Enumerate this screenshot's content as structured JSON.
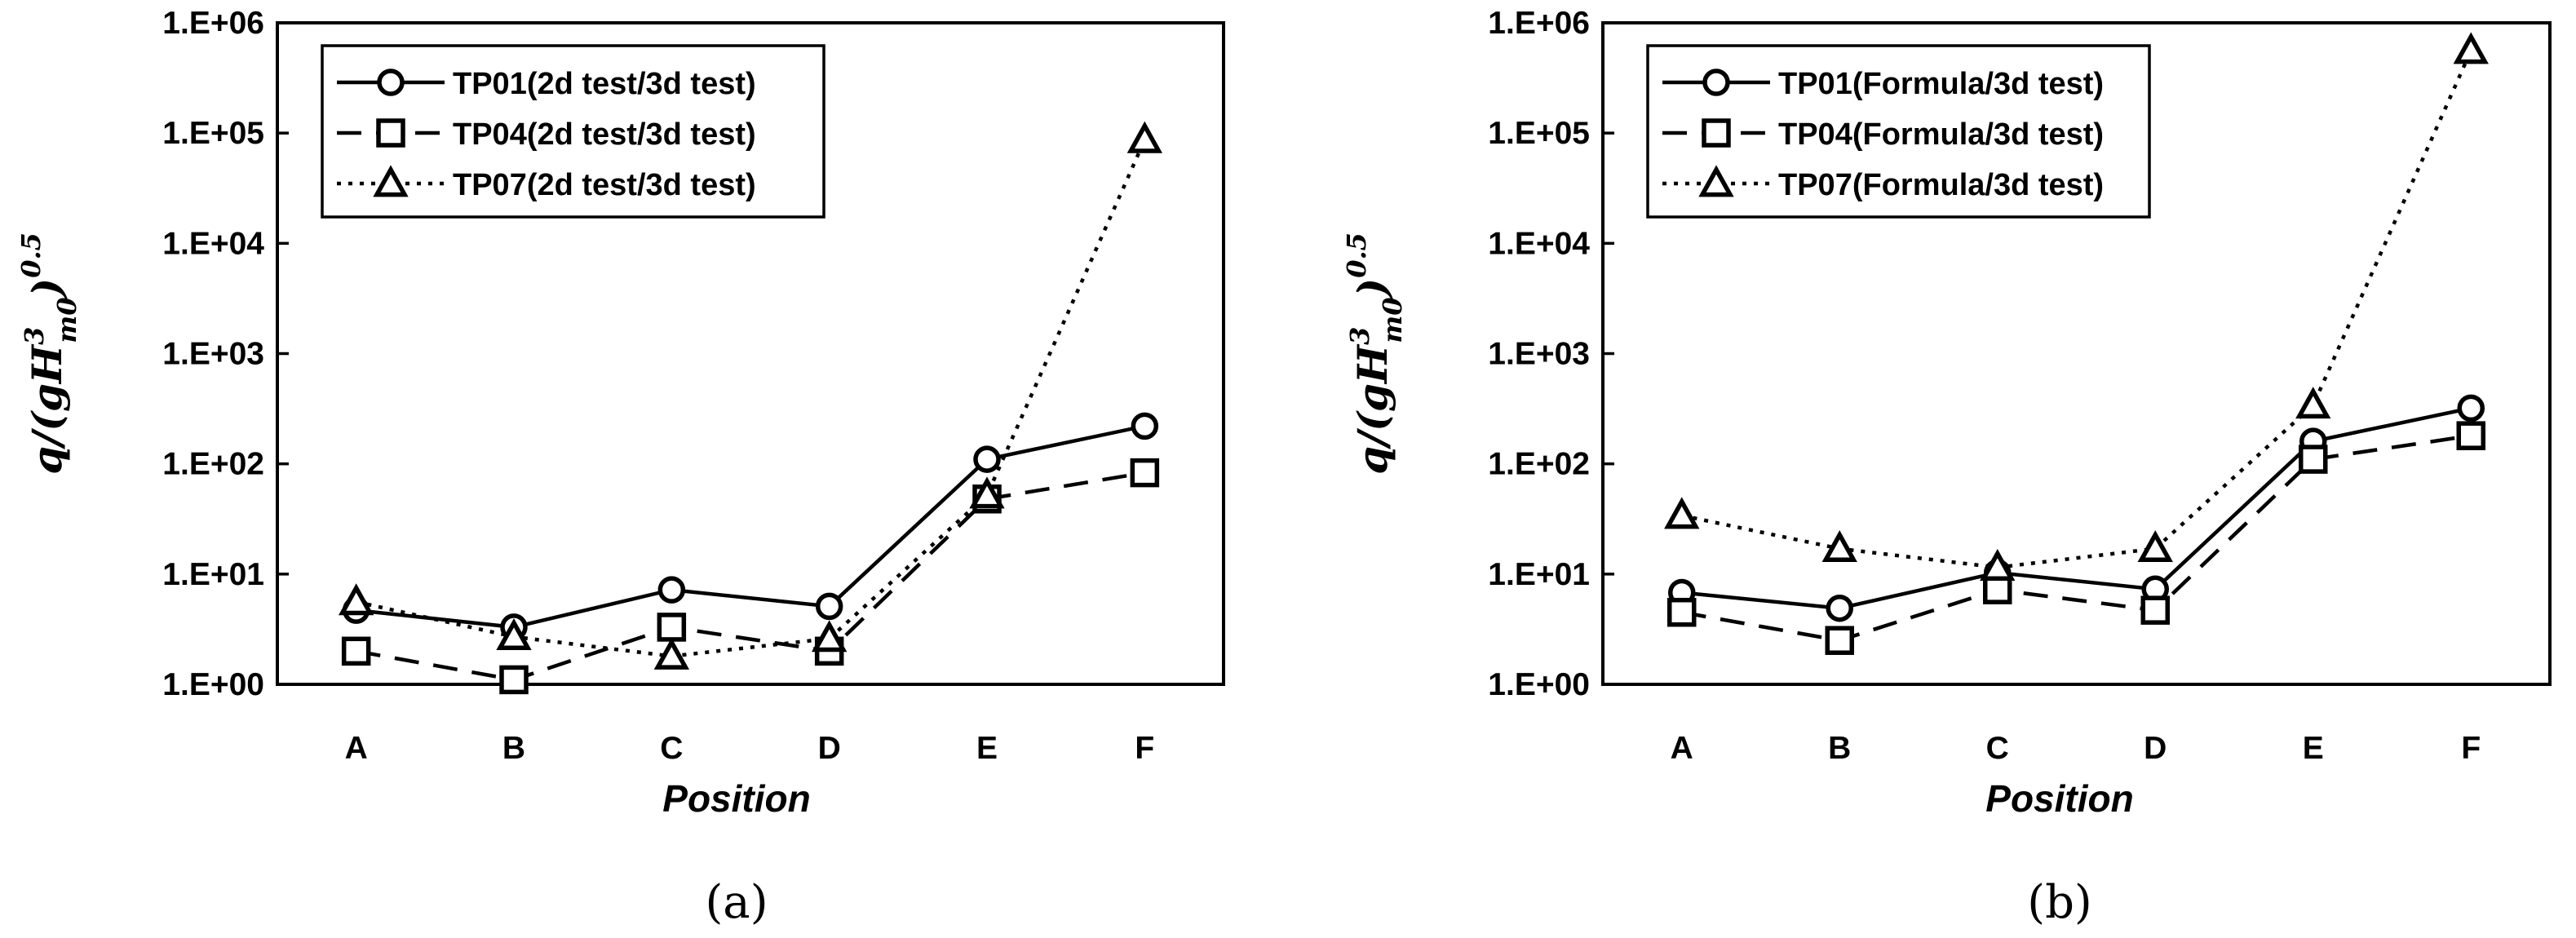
{
  "ylabel": {
    "main": "q/(gH",
    "sup": "3",
    "sub": "m0",
    "close": ")",
    "exp": "0.5"
  },
  "chart_data": [
    {
      "type": "line",
      "panel_label": "(a)",
      "xlabel": "Position",
      "categories": [
        "A",
        "B",
        "C",
        "D",
        "E",
        "F"
      ],
      "y_scale": "log",
      "ylim": [
        1,
        1000000
      ],
      "yticks": [
        "1.E+00",
        "1.E+01",
        "1.E+02",
        "1.E+03",
        "1.E+04",
        "1.E+05",
        "1.E+06"
      ],
      "grid": false,
      "legend_position": "top-left",
      "series": [
        {
          "name": "TP01(2d test/3d test)",
          "marker": "circle",
          "line_style": "solid",
          "values": [
            4.7,
            3.3,
            7.2,
            5.1,
            110,
            220
          ]
        },
        {
          "name": "TP04(2d test/3d test)",
          "marker": "square",
          "line_style": "dashed",
          "values": [
            2.0,
            1.1,
            3.3,
            2.0,
            48,
            83
          ]
        },
        {
          "name": "TP07(2d test/3d test)",
          "marker": "triangle",
          "line_style": "dotted",
          "values": [
            5.6,
            2.7,
            1.8,
            2.6,
            52,
            87000
          ]
        }
      ]
    },
    {
      "type": "line",
      "panel_label": "(b)",
      "xlabel": "Position",
      "categories": [
        "A",
        "B",
        "C",
        "D",
        "E",
        "F"
      ],
      "y_scale": "log",
      "ylim": [
        1,
        1000000
      ],
      "yticks": [
        "1.E+00",
        "1.E+01",
        "1.E+02",
        "1.E+03",
        "1.E+04",
        "1.E+05",
        "1.E+06"
      ],
      "grid": false,
      "legend_position": "top-left",
      "series": [
        {
          "name": "TP01(Formula/3d test)",
          "marker": "circle",
          "line_style": "solid",
          "values": [
            6.8,
            4.9,
            10.3,
            7.3,
            160,
            320
          ]
        },
        {
          "name": "TP04(Formula/3d test)",
          "marker": "square",
          "line_style": "dashed",
          "values": [
            4.5,
            2.5,
            7.2,
            4.7,
            110,
            180
          ]
        },
        {
          "name": "TP07(Formula/3d test)",
          "marker": "triangle",
          "line_style": "dotted",
          "values": [
            34,
            17,
            11.5,
            17,
            340,
            560000
          ]
        }
      ]
    }
  ]
}
